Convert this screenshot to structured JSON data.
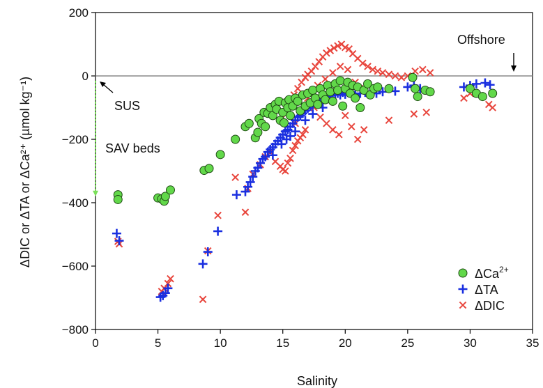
{
  "chart_data": {
    "type": "scatter",
    "xlabel": "Salinity",
    "ylabel": "ΔDIC or ΔTA or ΔCa²⁺ (µmol kg⁻¹)",
    "xlim": [
      0,
      35
    ],
    "ylim": [
      -800,
      200
    ],
    "x_ticks": [
      "0",
      "5",
      "10",
      "15",
      "20",
      "25",
      "30",
      "35"
    ],
    "y_ticks": [
      "200",
      "0",
      "−200",
      "−400",
      "−600",
      "−800"
    ],
    "annotations": {
      "offshore": "Offshore",
      "sus": "SUS",
      "sav": "SAV beds"
    },
    "colors": {
      "ca": "#62d84a",
      "ta": "#1a2fe0",
      "dic": "#e8453c",
      "zero_line": "#888888",
      "sav_line": "#7be05a"
    },
    "legend": {
      "placement": "bottom-right",
      "entries": [
        {
          "series": "ca",
          "label": "ΔCa",
          "sup": "2+"
        },
        {
          "series": "ta",
          "label": "ΔTA",
          "sup": ""
        },
        {
          "series": "dic",
          "label": "ΔDIC",
          "sup": ""
        }
      ]
    },
    "series": [
      {
        "key": "ca",
        "name": "ΔCa²⁺",
        "marker": "circle",
        "points": [
          [
            1.8,
            -375
          ],
          [
            1.8,
            -390
          ],
          [
            5.0,
            -385
          ],
          [
            5.3,
            -388
          ],
          [
            5.5,
            -395
          ],
          [
            5.6,
            -380
          ],
          [
            6.0,
            -360
          ],
          [
            8.7,
            -298
          ],
          [
            9.1,
            -292
          ],
          [
            10.0,
            -248
          ],
          [
            11.2,
            -200
          ],
          [
            12.0,
            -160
          ],
          [
            12.3,
            -150
          ],
          [
            12.8,
            -195
          ],
          [
            13.0,
            -178
          ],
          [
            13.1,
            -135
          ],
          [
            13.3,
            -150
          ],
          [
            13.5,
            -115
          ],
          [
            13.6,
            -160
          ],
          [
            13.8,
            -118
          ],
          [
            14.0,
            -100
          ],
          [
            14.2,
            -125
          ],
          [
            14.4,
            -90
          ],
          [
            14.5,
            -105
          ],
          [
            14.7,
            -80
          ],
          [
            14.8,
            -140
          ],
          [
            15.0,
            -115
          ],
          [
            15.1,
            -148
          ],
          [
            15.2,
            -85
          ],
          [
            15.4,
            -100
          ],
          [
            15.5,
            -75
          ],
          [
            15.6,
            -125
          ],
          [
            15.8,
            -95
          ],
          [
            16.0,
            -70
          ],
          [
            16.2,
            -80
          ],
          [
            16.4,
            -110
          ],
          [
            16.6,
            -60
          ],
          [
            16.8,
            -95
          ],
          [
            17.0,
            -55
          ],
          [
            17.2,
            -85
          ],
          [
            17.4,
            -45
          ],
          [
            17.6,
            -70
          ],
          [
            17.8,
            -90
          ],
          [
            18.0,
            -40
          ],
          [
            18.2,
            -60
          ],
          [
            18.4,
            -75
          ],
          [
            18.6,
            -30
          ],
          [
            18.8,
            -50
          ],
          [
            19.0,
            -80
          ],
          [
            19.2,
            -25
          ],
          [
            19.4,
            -45
          ],
          [
            19.6,
            -15
          ],
          [
            19.8,
            -95
          ],
          [
            20.0,
            -40
          ],
          [
            20.2,
            -20
          ],
          [
            20.4,
            -55
          ],
          [
            20.6,
            -30
          ],
          [
            20.8,
            -70
          ],
          [
            21.0,
            -35
          ],
          [
            21.2,
            -100
          ],
          [
            21.5,
            -45
          ],
          [
            21.8,
            -25
          ],
          [
            22.0,
            -60
          ],
          [
            22.3,
            -40
          ],
          [
            22.6,
            -35
          ],
          [
            23.5,
            -40
          ],
          [
            25.4,
            -5
          ],
          [
            25.6,
            -40
          ],
          [
            25.8,
            -65
          ],
          [
            26.4,
            -45
          ],
          [
            26.8,
            -50
          ],
          [
            30.0,
            -40
          ],
          [
            30.5,
            -55
          ],
          [
            31.0,
            -65
          ],
          [
            31.8,
            -55
          ]
        ]
      },
      {
        "key": "ta",
        "name": "ΔTA",
        "marker": "plus",
        "points": [
          [
            1.7,
            -497
          ],
          [
            1.9,
            -520
          ],
          [
            5.2,
            -698
          ],
          [
            5.4,
            -693
          ],
          [
            5.6,
            -685
          ],
          [
            5.8,
            -670
          ],
          [
            8.6,
            -593
          ],
          [
            9.0,
            -555
          ],
          [
            9.8,
            -490
          ],
          [
            11.3,
            -375
          ],
          [
            12.0,
            -365
          ],
          [
            12.2,
            -350
          ],
          [
            12.4,
            -335
          ],
          [
            12.6,
            -318
          ],
          [
            12.8,
            -300
          ],
          [
            13.0,
            -290
          ],
          [
            13.2,
            -275
          ],
          [
            13.4,
            -262
          ],
          [
            13.6,
            -255
          ],
          [
            13.8,
            -240
          ],
          [
            14.0,
            -232
          ],
          [
            14.2,
            -225
          ],
          [
            14.4,
            -215
          ],
          [
            14.6,
            -205
          ],
          [
            14.8,
            -195
          ],
          [
            15.0,
            -185
          ],
          [
            15.2,
            -175
          ],
          [
            15.4,
            -170
          ],
          [
            15.6,
            -160
          ],
          [
            15.8,
            -150
          ],
          [
            16.0,
            -140
          ],
          [
            16.2,
            -130
          ],
          [
            16.4,
            -125
          ],
          [
            16.6,
            -118
          ],
          [
            16.8,
            -110
          ],
          [
            17.0,
            -102
          ],
          [
            17.2,
            -96
          ],
          [
            17.4,
            -90
          ],
          [
            17.6,
            -85
          ],
          [
            17.8,
            -80
          ],
          [
            18.0,
            -78
          ],
          [
            18.2,
            -72
          ],
          [
            18.4,
            -70
          ],
          [
            18.6,
            -65
          ],
          [
            18.8,
            -62
          ],
          [
            19.0,
            -60
          ],
          [
            19.2,
            -58
          ],
          [
            19.4,
            -55
          ],
          [
            19.6,
            -60
          ],
          [
            19.8,
            -52
          ],
          [
            20.0,
            -58
          ],
          [
            20.2,
            -50
          ],
          [
            20.5,
            -55
          ],
          [
            20.8,
            -60
          ],
          [
            21.2,
            -55
          ],
          [
            21.6,
            -52
          ],
          [
            22.0,
            -50
          ],
          [
            22.5,
            -55
          ],
          [
            23.0,
            -50
          ],
          [
            24.0,
            -48
          ],
          [
            25.0,
            -35
          ],
          [
            25.5,
            -30
          ],
          [
            26.0,
            -40
          ],
          [
            29.5,
            -35
          ],
          [
            30.0,
            -30
          ],
          [
            30.5,
            -25
          ],
          [
            31.2,
            -22
          ],
          [
            31.6,
            -28
          ],
          [
            15.6,
            -190
          ],
          [
            16.0,
            -175
          ],
          [
            16.8,
            -140
          ],
          [
            17.4,
            -120
          ],
          [
            18.2,
            -100
          ],
          [
            14.2,
            -250
          ],
          [
            14.9,
            -215
          ],
          [
            15.3,
            -200
          ]
        ]
      },
      {
        "key": "dic",
        "name": "ΔDIC",
        "marker": "x",
        "points": [
          [
            1.8,
            -522
          ],
          [
            1.9,
            -530
          ],
          [
            5.3,
            -680
          ],
          [
            5.5,
            -670
          ],
          [
            5.8,
            -655
          ],
          [
            6.0,
            -640
          ],
          [
            8.6,
            -705
          ],
          [
            9.0,
            -552
          ],
          [
            9.8,
            -440
          ],
          [
            11.2,
            -320
          ],
          [
            12.0,
            -430
          ],
          [
            12.2,
            -355
          ],
          [
            12.6,
            -310
          ],
          [
            13.2,
            -280
          ],
          [
            13.6,
            -255
          ],
          [
            14.0,
            -240
          ],
          [
            14.4,
            -270
          ],
          [
            14.8,
            -285
          ],
          [
            15.0,
            -295
          ],
          [
            15.2,
            -300
          ],
          [
            15.4,
            -275
          ],
          [
            15.6,
            -260
          ],
          [
            15.8,
            -235
          ],
          [
            16.0,
            -220
          ],
          [
            16.2,
            -205
          ],
          [
            16.4,
            -195
          ],
          [
            16.6,
            -185
          ],
          [
            16.8,
            -170
          ],
          [
            15.3,
            -120
          ],
          [
            15.6,
            -90
          ],
          [
            15.9,
            -60
          ],
          [
            16.2,
            -40
          ],
          [
            16.5,
            -20
          ],
          [
            16.8,
            -5
          ],
          [
            17.0,
            5
          ],
          [
            17.3,
            15
          ],
          [
            17.6,
            30
          ],
          [
            17.9,
            45
          ],
          [
            18.2,
            60
          ],
          [
            18.5,
            72
          ],
          [
            18.8,
            80
          ],
          [
            19.1,
            88
          ],
          [
            19.4,
            95
          ],
          [
            19.7,
            100
          ],
          [
            20.0,
            90
          ],
          [
            20.3,
            85
          ],
          [
            20.6,
            70
          ],
          [
            21.0,
            55
          ],
          [
            21.4,
            40
          ],
          [
            21.8,
            30
          ],
          [
            22.2,
            20
          ],
          [
            22.6,
            15
          ],
          [
            23.0,
            10
          ],
          [
            23.5,
            5
          ],
          [
            24.0,
            0
          ],
          [
            24.5,
            -5
          ],
          [
            25.0,
            0
          ],
          [
            25.6,
            15
          ],
          [
            26.2,
            20
          ],
          [
            26.8,
            10
          ],
          [
            17.0,
            -70
          ],
          [
            17.5,
            -100
          ],
          [
            18.0,
            -130
          ],
          [
            18.5,
            -150
          ],
          [
            19.0,
            -170
          ],
          [
            19.5,
            -185
          ],
          [
            20.0,
            -125
          ],
          [
            20.5,
            -160
          ],
          [
            21.0,
            -200
          ],
          [
            21.5,
            -170
          ],
          [
            23.5,
            -140
          ],
          [
            25.5,
            -120
          ],
          [
            26.5,
            -115
          ],
          [
            29.5,
            -70
          ],
          [
            30.0,
            -55
          ],
          [
            31.5,
            -90
          ],
          [
            31.8,
            -100
          ],
          [
            16.0,
            -150
          ],
          [
            16.6,
            -110
          ],
          [
            17.2,
            -60
          ],
          [
            17.8,
            -30
          ],
          [
            18.4,
            -10
          ],
          [
            19.0,
            10
          ],
          [
            19.6,
            30
          ],
          [
            20.2,
            20
          ],
          [
            20.8,
            -20
          ],
          [
            21.6,
            -40
          ]
        ]
      }
    ]
  }
}
